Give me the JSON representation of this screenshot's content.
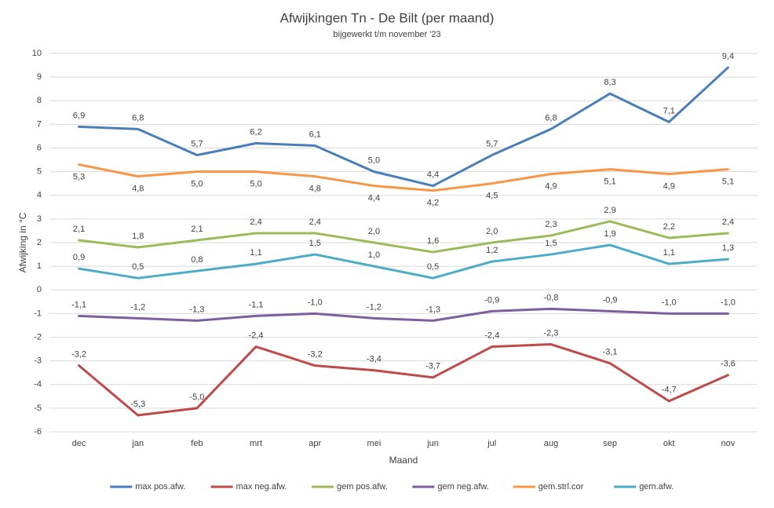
{
  "chart_data": {
    "type": "line",
    "title": "Afwijkingen Tn - De Bilt (per maand)",
    "subtitle": "bijgewerkt t/m november '23",
    "x_label": "Maand",
    "y_label": "Afwijking in °C",
    "categories": [
      "dec",
      "jan",
      "feb",
      "mrt",
      "apr",
      "mei",
      "jun",
      "jul",
      "aug",
      "sep",
      "okt",
      "nov"
    ],
    "ylim": [
      -6,
      10
    ],
    "yticks": [
      -6,
      -5,
      -4,
      -3,
      -2,
      -1,
      0,
      1,
      2,
      3,
      4,
      5,
      6,
      7,
      8,
      9,
      10
    ],
    "grid": true,
    "legend": "bottom",
    "series": [
      {
        "name": "max pos.afw.",
        "color": "#4a7ebb",
        "label_position": "above",
        "values": [
          6.9,
          6.8,
          5.7,
          6.2,
          6.1,
          5.0,
          4.4,
          5.7,
          6.8,
          8.3,
          7.1,
          9.4
        ],
        "value_labels": [
          "6,9",
          "6,8",
          "5,7",
          "6,2",
          "6,1",
          "5,0",
          "4,4",
          "5,7",
          "6,8",
          "8,3",
          "7,1",
          "9,4"
        ]
      },
      {
        "name": "max neg.afw.",
        "color": "#be4b48",
        "label_position": "above",
        "values": [
          -3.2,
          -5.3,
          -5.0,
          -2.4,
          -3.2,
          -3.4,
          -3.7,
          -2.4,
          -2.3,
          -3.1,
          -4.7,
          -3.6
        ],
        "value_labels": [
          "-3,2",
          "-5,3",
          "-5,0",
          "-2,4",
          "-3,2",
          "-3,4",
          "-3,7",
          "-2,4",
          "-2,3",
          "-3,1",
          "-4,7",
          "-3,6"
        ]
      },
      {
        "name": "gem pos.afw.",
        "color": "#9bbb59",
        "label_position": "above",
        "values": [
          2.1,
          1.8,
          2.1,
          2.4,
          2.4,
          2.0,
          1.6,
          2.0,
          2.3,
          2.9,
          2.2,
          2.4
        ],
        "value_labels": [
          "2,1",
          "1,8",
          "2,1",
          "2,4",
          "2,4",
          "2,0",
          "1,6",
          "2,0",
          "2,3",
          "2,9",
          "2,2",
          "2,4"
        ]
      },
      {
        "name": "gem neg.afw.",
        "color": "#7d5fa0",
        "label_position": "above",
        "values": [
          -1.1,
          -1.2,
          -1.3,
          -1.1,
          -1.0,
          -1.2,
          -1.3,
          -0.9,
          -0.8,
          -0.9,
          -1.0,
          -1.0
        ],
        "value_labels": [
          "-1,1",
          "-1,2",
          "-1,3",
          "-1,1",
          "-1,0",
          "-1,2",
          "-1,3",
          "-0,9",
          "-0,8",
          "-0,9",
          "-1,0",
          "-1,0"
        ]
      },
      {
        "name": "gem.strl.cor",
        "color": "#f79646",
        "label_position": "below",
        "values": [
          5.3,
          4.8,
          5.0,
          5.0,
          4.8,
          4.4,
          4.2,
          4.5,
          4.9,
          5.1,
          4.9,
          5.1
        ],
        "value_labels": [
          "5,3",
          "4,8",
          "5,0",
          "5,0",
          "4,8",
          "4,4",
          "4,2",
          "4,5",
          "4,9",
          "5,1",
          "4,9",
          "5,1"
        ]
      },
      {
        "name": "gem.afw.",
        "color": "#4bacc6",
        "label_position": "above",
        "values": [
          0.9,
          0.5,
          0.8,
          1.1,
          1.5,
          1.0,
          0.5,
          1.2,
          1.5,
          1.9,
          1.1,
          1.3
        ],
        "value_labels": [
          "0,9",
          "0,5",
          "0,8",
          "1,1",
          "1,5",
          "1,0",
          "0,5",
          "1,2",
          "1,5",
          "1,9",
          "1,1",
          "1,3"
        ]
      }
    ]
  }
}
